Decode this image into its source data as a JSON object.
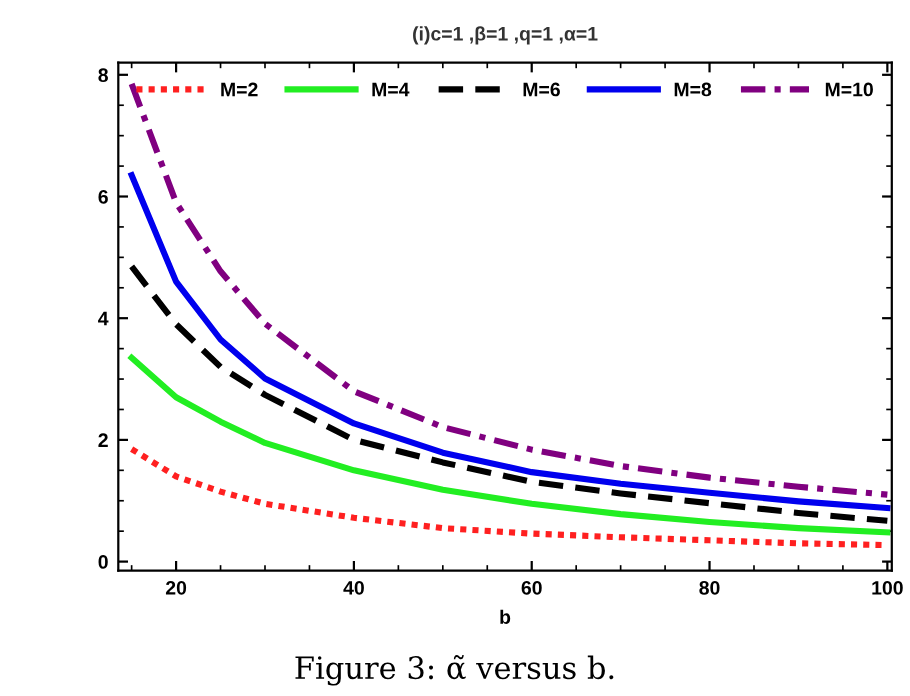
{
  "chart_data": {
    "type": "line",
    "title": "(i)c=1 ,β=1 ,q=1 ,α=1",
    "xlabel": "b",
    "annotations": [
      "Figure 3: α̃ versus b."
    ],
    "x": [
      15,
      20,
      25,
      30,
      40,
      50,
      60,
      70,
      80,
      90,
      100
    ],
    "series": [
      {
        "name": "M=2",
        "color": "#ff2020",
        "line_style": "dotted",
        "values": [
          1.85,
          1.4,
          1.15,
          0.95,
          0.72,
          0.55,
          0.46,
          0.4,
          0.35,
          0.3,
          0.27
        ]
      },
      {
        "name": "M=4",
        "color": "#22ee22",
        "line_style": "solid",
        "values": [
          3.35,
          2.7,
          2.3,
          1.95,
          1.5,
          1.18,
          0.95,
          0.78,
          0.65,
          0.55,
          0.48
        ]
      },
      {
        "name": "M=6",
        "color": "#000000",
        "line_style": "dashed",
        "values": [
          4.85,
          3.9,
          3.2,
          2.74,
          2.0,
          1.63,
          1.31,
          1.12,
          0.96,
          0.8,
          0.67
        ]
      },
      {
        "name": "M=8",
        "color": "#0000ee",
        "line_style": "solid",
        "values": [
          6.35,
          4.6,
          3.65,
          3.01,
          2.27,
          1.79,
          1.47,
          1.28,
          1.13,
          0.99,
          0.88
        ]
      },
      {
        "name": "M=10",
        "color": "#800080",
        "line_style": "dashdot",
        "values": [
          7.85,
          5.9,
          4.77,
          3.91,
          2.8,
          2.21,
          1.84,
          1.57,
          1.38,
          1.23,
          1.1
        ]
      }
    ],
    "xlim": [
      13.5,
      100.5
    ],
    "ylim": [
      -0.15,
      8.2
    ],
    "xticks": [
      20,
      40,
      60,
      80,
      100
    ],
    "yticks": [
      0,
      2,
      4,
      6,
      8
    ],
    "grid": false,
    "legend": "top"
  }
}
